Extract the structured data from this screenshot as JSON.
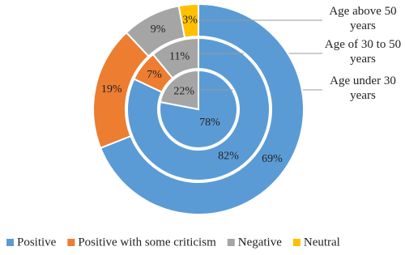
{
  "chart_data": {
    "type": "pie",
    "categories": [
      "Positive",
      "Positive with some criticism",
      "Negative",
      "Neutral"
    ],
    "colors": [
      "#5b9bd5",
      "#ed7d31",
      "#a5a5a5",
      "#ffc000"
    ],
    "series": [
      {
        "name": "Age under 30 years",
        "values": [
          78,
          null,
          22,
          null
        ],
        "value_labels": [
          "78%",
          null,
          "22%",
          null
        ]
      },
      {
        "name": "Age of 30 to 50 years",
        "values": [
          82,
          7,
          11,
          null
        ],
        "value_labels": [
          "82%",
          "7%",
          "11%",
          null
        ]
      },
      {
        "name": "Age above 50 years",
        "values": [
          69,
          19,
          9,
          3
        ],
        "value_labels": [
          "69%",
          "19%",
          "9%",
          "3%"
        ]
      }
    ],
    "legend": "bottom"
  }
}
